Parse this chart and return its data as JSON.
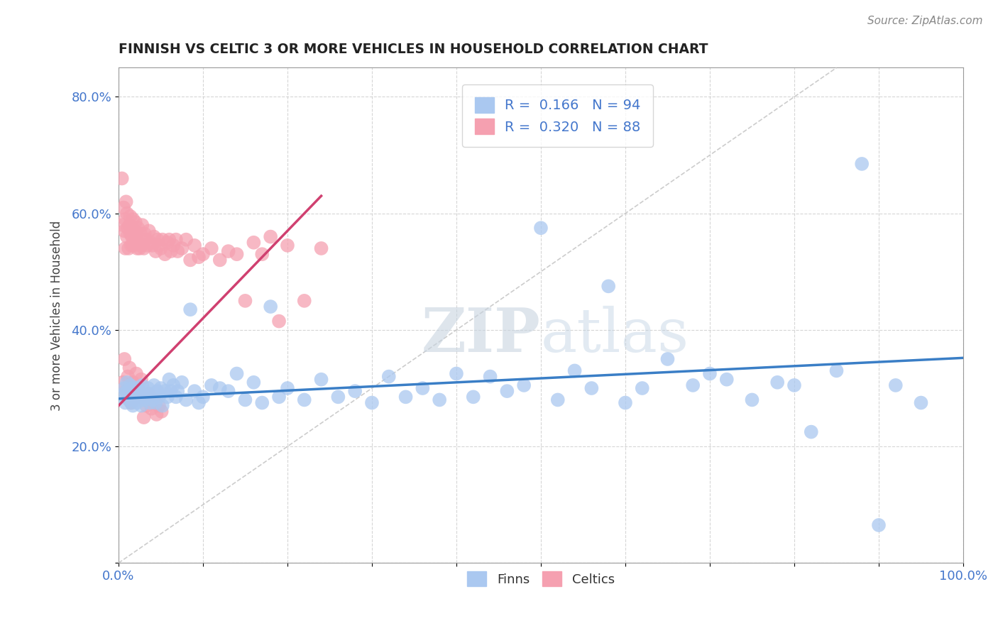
{
  "title": "FINNISH VS CELTIC 3 OR MORE VEHICLES IN HOUSEHOLD CORRELATION CHART",
  "source": "Source: ZipAtlas.com",
  "ylabel": "3 or more Vehicles in Household",
  "xlim": [
    0.0,
    1.0
  ],
  "ylim": [
    0.0,
    0.85
  ],
  "finns_color": "#aac8f0",
  "celtics_color": "#f5a0b0",
  "finns_line_color": "#3a7ec6",
  "celtics_line_color": "#d04070",
  "legend_text_color": "#4477cc",
  "watermark_color": "#c8d8e8",
  "finns_scatter": {
    "x": [
      0.005,
      0.007,
      0.008,
      0.009,
      0.01,
      0.01,
      0.012,
      0.013,
      0.014,
      0.015,
      0.015,
      0.016,
      0.017,
      0.018,
      0.02,
      0.02,
      0.021,
      0.022,
      0.022,
      0.023,
      0.025,
      0.026,
      0.027,
      0.028,
      0.03,
      0.031,
      0.032,
      0.035,
      0.037,
      0.038,
      0.04,
      0.042,
      0.044,
      0.046,
      0.048,
      0.05,
      0.052,
      0.055,
      0.058,
      0.06,
      0.062,
      0.065,
      0.068,
      0.07,
      0.075,
      0.08,
      0.085,
      0.09,
      0.095,
      0.1,
      0.11,
      0.12,
      0.13,
      0.14,
      0.15,
      0.16,
      0.17,
      0.18,
      0.19,
      0.2,
      0.22,
      0.24,
      0.26,
      0.28,
      0.3,
      0.32,
      0.34,
      0.36,
      0.38,
      0.4,
      0.42,
      0.44,
      0.46,
      0.48,
      0.5,
      0.52,
      0.54,
      0.56,
      0.58,
      0.6,
      0.62,
      0.65,
      0.68,
      0.7,
      0.72,
      0.75,
      0.78,
      0.8,
      0.82,
      0.85,
      0.88,
      0.9,
      0.92,
      0.95
    ],
    "y": [
      0.29,
      0.3,
      0.275,
      0.285,
      0.295,
      0.31,
      0.28,
      0.295,
      0.305,
      0.275,
      0.285,
      0.3,
      0.27,
      0.295,
      0.28,
      0.3,
      0.285,
      0.275,
      0.3,
      0.29,
      0.285,
      0.295,
      0.27,
      0.305,
      0.28,
      0.295,
      0.285,
      0.3,
      0.275,
      0.29,
      0.28,
      0.305,
      0.275,
      0.295,
      0.285,
      0.3,
      0.27,
      0.295,
      0.285,
      0.315,
      0.295,
      0.305,
      0.285,
      0.295,
      0.31,
      0.28,
      0.435,
      0.295,
      0.275,
      0.285,
      0.305,
      0.3,
      0.295,
      0.325,
      0.28,
      0.31,
      0.275,
      0.44,
      0.285,
      0.3,
      0.28,
      0.315,
      0.285,
      0.295,
      0.275,
      0.32,
      0.285,
      0.3,
      0.28,
      0.325,
      0.285,
      0.32,
      0.295,
      0.305,
      0.575,
      0.28,
      0.33,
      0.3,
      0.475,
      0.275,
      0.3,
      0.35,
      0.305,
      0.325,
      0.315,
      0.28,
      0.31,
      0.305,
      0.225,
      0.33,
      0.685,
      0.065,
      0.305,
      0.275
    ]
  },
  "celtics_scatter": {
    "x": [
      0.004,
      0.005,
      0.006,
      0.007,
      0.008,
      0.008,
      0.009,
      0.01,
      0.01,
      0.011,
      0.012,
      0.013,
      0.014,
      0.014,
      0.015,
      0.015,
      0.016,
      0.017,
      0.018,
      0.019,
      0.02,
      0.02,
      0.021,
      0.022,
      0.023,
      0.024,
      0.025,
      0.026,
      0.027,
      0.028,
      0.03,
      0.031,
      0.032,
      0.034,
      0.036,
      0.038,
      0.04,
      0.042,
      0.044,
      0.046,
      0.048,
      0.05,
      0.052,
      0.055,
      0.058,
      0.06,
      0.062,
      0.065,
      0.068,
      0.07,
      0.075,
      0.08,
      0.085,
      0.09,
      0.095,
      0.1,
      0.11,
      0.12,
      0.13,
      0.14,
      0.15,
      0.16,
      0.17,
      0.18,
      0.19,
      0.2,
      0.22,
      0.24,
      0.005,
      0.007,
      0.009,
      0.011,
      0.013,
      0.015,
      0.017,
      0.019,
      0.021,
      0.023,
      0.025,
      0.027,
      0.03,
      0.033,
      0.036,
      0.039,
      0.042,
      0.045,
      0.048,
      0.051
    ],
    "y": [
      0.66,
      0.58,
      0.61,
      0.57,
      0.54,
      0.59,
      0.62,
      0.56,
      0.6,
      0.575,
      0.54,
      0.58,
      0.565,
      0.595,
      0.545,
      0.575,
      0.56,
      0.59,
      0.545,
      0.57,
      0.555,
      0.585,
      0.56,
      0.54,
      0.575,
      0.55,
      0.54,
      0.565,
      0.545,
      0.58,
      0.54,
      0.565,
      0.555,
      0.545,
      0.57,
      0.55,
      0.545,
      0.56,
      0.535,
      0.555,
      0.545,
      0.54,
      0.555,
      0.53,
      0.55,
      0.555,
      0.535,
      0.545,
      0.555,
      0.535,
      0.54,
      0.555,
      0.52,
      0.545,
      0.525,
      0.53,
      0.54,
      0.52,
      0.535,
      0.53,
      0.45,
      0.55,
      0.53,
      0.56,
      0.415,
      0.545,
      0.45,
      0.54,
      0.31,
      0.35,
      0.295,
      0.32,
      0.335,
      0.275,
      0.31,
      0.29,
      0.325,
      0.3,
      0.285,
      0.315,
      0.25,
      0.27,
      0.29,
      0.265,
      0.28,
      0.255,
      0.27,
      0.26
    ]
  },
  "finns_line": {
    "x0": 0.0,
    "x1": 1.0,
    "y0": 0.282,
    "y1": 0.352
  },
  "celtics_line": {
    "x0": 0.0,
    "x1": 0.24,
    "y0": 0.27,
    "y1": 0.63
  },
  "diag_line": {
    "x0": 0.0,
    "y0": 0.0,
    "x1": 0.85,
    "y1": 0.85
  }
}
